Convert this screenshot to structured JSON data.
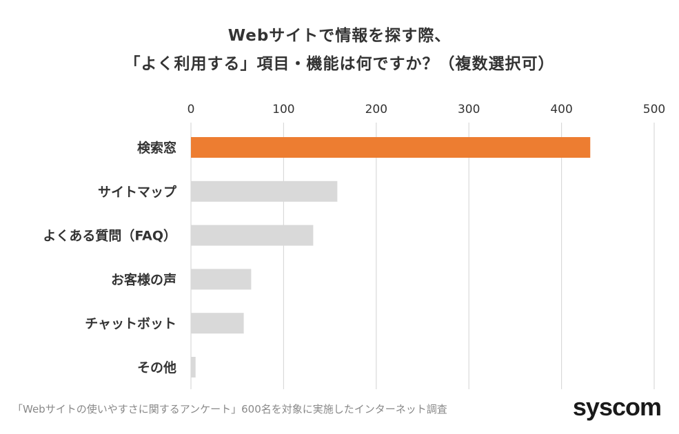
{
  "chart_data": {
    "type": "bar",
    "orientation": "horizontal",
    "title_lines": [
      "Webサイトで情報を探す際、",
      "「よく利用する」項目・機能は何ですか？（複数選択可）"
    ],
    "categories": [
      "検索窓",
      "サイトマップ",
      "よくある質問（FAQ）",
      "お客様の声",
      "チャットボット",
      "その他"
    ],
    "values": [
      431,
      158,
      132,
      65,
      57,
      5
    ],
    "xlim": [
      0,
      500
    ],
    "ticks": [
      "0",
      "100",
      "200",
      "300",
      "400",
      "500"
    ],
    "tick_values": [
      0,
      100,
      200,
      300,
      400,
      500
    ],
    "axis_position": "top",
    "grid": true,
    "highlight_color": "#ED7D31",
    "bar_color": "#D9D9D9",
    "highlight_index": 0
  },
  "footer": {
    "source": "「Webサイトの使いやすさに関するアンケート」600名を対象に実施したインターネット調査",
    "logo": "syscom"
  }
}
